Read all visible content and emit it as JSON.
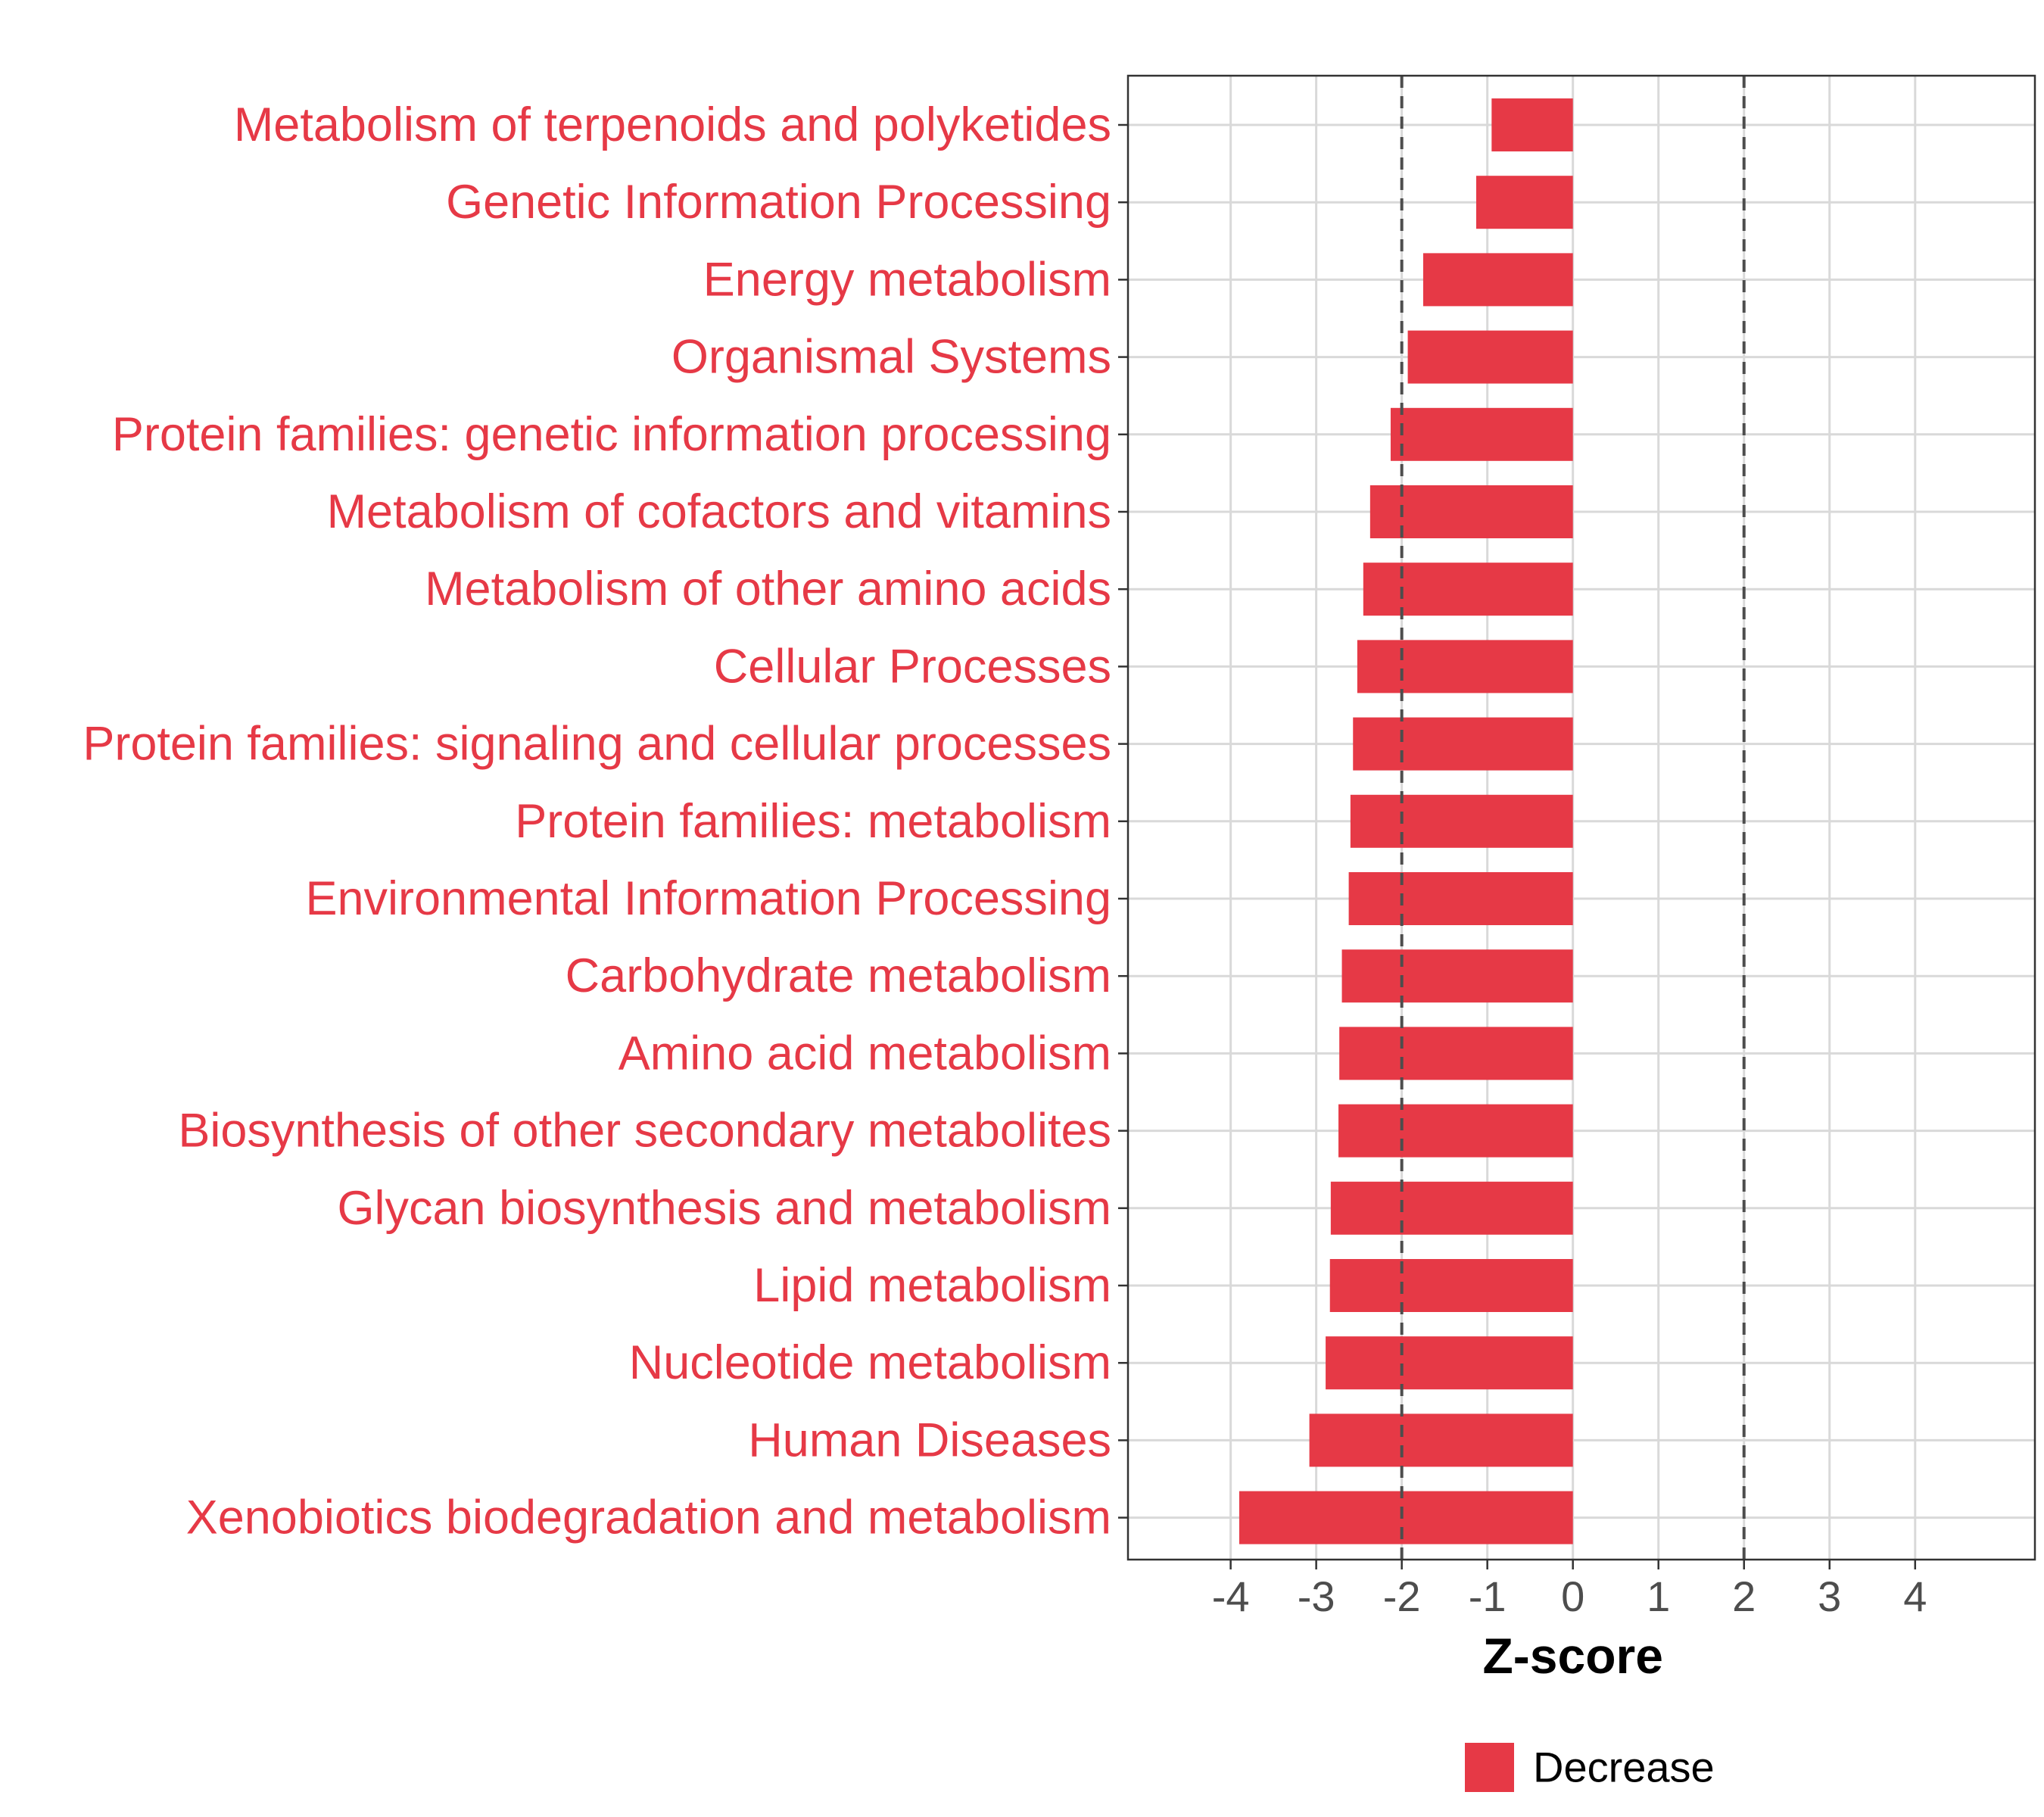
{
  "chart_data": {
    "type": "bar",
    "orientation": "horizontal",
    "categories": [
      "Metabolism of terpenoids and polyketides",
      "Genetic Information Processing",
      "Energy metabolism",
      "Organismal Systems",
      "Protein families: genetic information processing",
      "Metabolism of cofactors and vitamins",
      "Metabolism of other amino acids",
      "Cellular Processes",
      "Protein families: signaling and cellular processes",
      "Protein families: metabolism",
      "Environmental Information Processing",
      "Carbohydrate metabolism",
      "Amino acid metabolism",
      "Biosynthesis of other secondary metabolites",
      "Glycan biosynthesis and metabolism",
      "Lipid metabolism",
      "Nucleotide metabolism",
      "Human Diseases",
      "Xenobiotics biodegradation and metabolism"
    ],
    "series": [
      {
        "name": "Decrease",
        "color": "#e63946",
        "values": [
          -0.95,
          -1.13,
          -1.75,
          -1.93,
          -2.13,
          -2.37,
          -2.45,
          -2.52,
          -2.57,
          -2.6,
          -2.62,
          -2.7,
          -2.73,
          -2.74,
          -2.83,
          -2.84,
          -2.89,
          -3.08,
          -3.9
        ]
      }
    ],
    "reference_lines": [
      -2,
      2
    ],
    "xlabel": "Z-score",
    "xlim": [
      -5.2,
      5.4
    ],
    "xticks": [
      -4,
      -3,
      -2,
      -1,
      0,
      1,
      2,
      3,
      4
    ],
    "xtick_labels": [
      "-4",
      "-3",
      "-2",
      "-1",
      "0",
      "1",
      "2",
      "3",
      "4"
    ],
    "grid": true,
    "legend": {
      "position": "bottom",
      "entries": [
        "Decrease"
      ]
    },
    "colors": {
      "bar": "#e63946",
      "label": "#e63946",
      "grid": "#d9d9d9",
      "reference": "#4d4d4d"
    }
  }
}
